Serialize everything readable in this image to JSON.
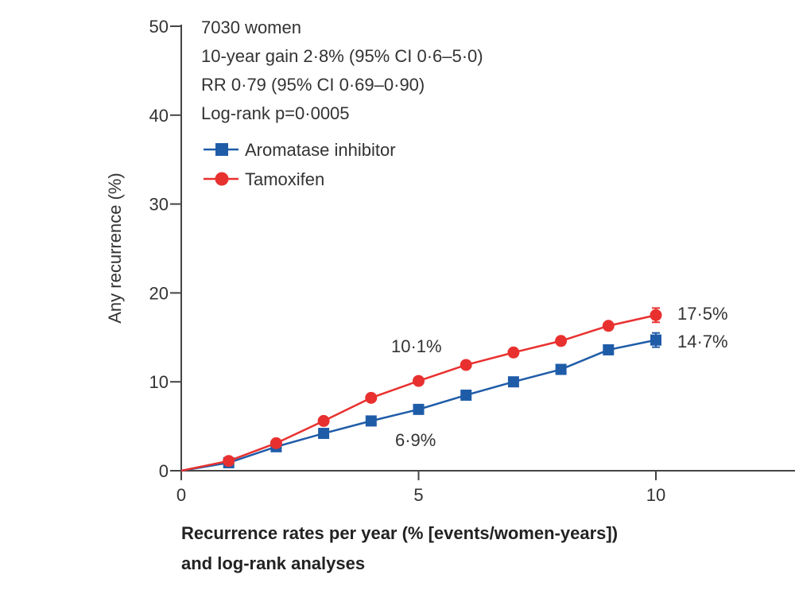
{
  "chart_data": {
    "type": "line",
    "ylabel": "Any recurrence (%)",
    "xlabel_lines": [
      "Recurrence rates per year (% [events/women-years])",
      "and log-rank analyses"
    ],
    "xlim": [
      0,
      13
    ],
    "ylim": [
      0,
      50
    ],
    "xticks": [
      0,
      5,
      10
    ],
    "yticks": [
      0,
      10,
      20,
      30,
      40,
      50
    ],
    "grid": false,
    "annotations": [
      "7030 women",
      "10-year gain 2·8% (95% CI 0·6–5·0)",
      "RR 0·79 (95% CI 0·69–0·90)",
      "Log-rank p=0·0005"
    ],
    "legend_position": "top-left",
    "series": [
      {
        "name": "Aromatase inhibitor",
        "color": "#1f5ca8",
        "marker": "square",
        "x": [
          0,
          1,
          2,
          3,
          4,
          5,
          6,
          7,
          8,
          9,
          10
        ],
        "y": [
          0,
          0.9,
          2.7,
          4.2,
          5.6,
          6.9,
          8.5,
          10.0,
          11.4,
          13.6,
          14.7
        ],
        "error_bar_at_x": 10,
        "error": 0.8
      },
      {
        "name": "Tamoxifen",
        "color": "#e8312f",
        "marker": "circle",
        "x": [
          0,
          1,
          2,
          3,
          4,
          5,
          6,
          7,
          8,
          9,
          10
        ],
        "y": [
          0,
          1.1,
          3.1,
          5.6,
          8.2,
          10.1,
          11.9,
          13.3,
          14.6,
          16.3,
          17.5
        ],
        "error_bar_at_x": 10,
        "error": 0.8
      }
    ],
    "data_labels": [
      {
        "text": "10·1%",
        "x": 5,
        "y": 10.1,
        "series": "Tamoxifen"
      },
      {
        "text": "6·9%",
        "x": 5,
        "y": 6.9,
        "series": "Aromatase inhibitor"
      },
      {
        "text": "17·5%",
        "x": 10,
        "y": 17.5,
        "series": "Tamoxifen"
      },
      {
        "text": "14·7%",
        "x": 10,
        "y": 14.7,
        "series": "Aromatase inhibitor"
      }
    ]
  }
}
